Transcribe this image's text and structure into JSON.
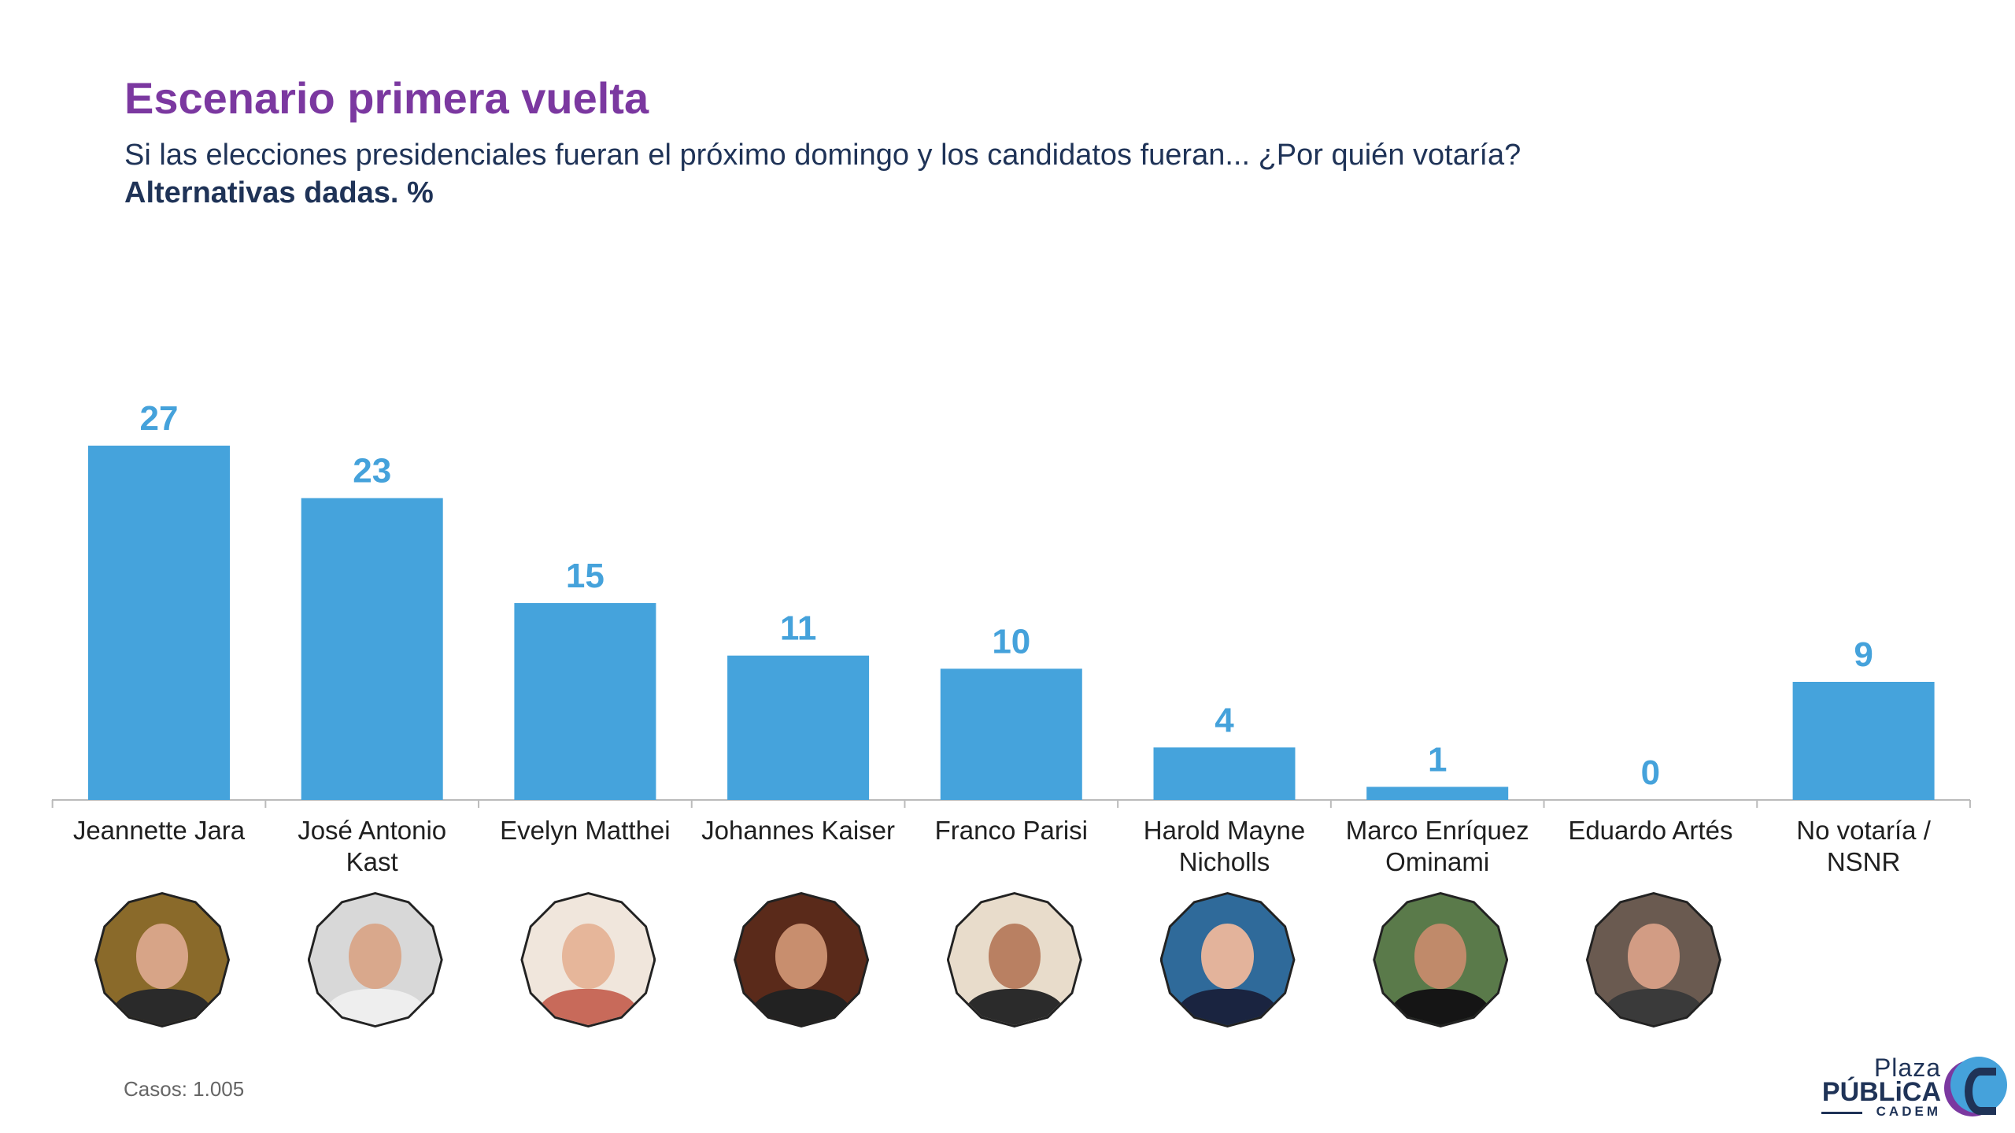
{
  "header": {
    "title": "Escenario primera vuelta",
    "subtitle": "Si las elecciones presidenciales fueran el próximo domingo y los candidatos fueran... ¿Por quién votaría?",
    "note": "Alternativas dadas. %"
  },
  "footer": {
    "cases": "Casos: 1.005",
    "logo": {
      "line1": "Plaza",
      "line2": "PÚBLiCA",
      "line3": "CADEM"
    }
  },
  "colors": {
    "bar": "#45a3dc",
    "label": "#45a2db",
    "title": "#7b38a0",
    "text": "#1f3357"
  },
  "chart_data": {
    "type": "bar",
    "title": "Escenario primera vuelta",
    "xlabel": "",
    "ylabel": "%",
    "ylim": [
      0,
      27
    ],
    "grid": false,
    "categories": [
      "Jeannette Jara",
      "José Antonio Kast",
      "Evelyn Matthei",
      "Johannes Kaiser",
      "Franco Parisi",
      "Harold Mayne Nicholls",
      "Marco Enríquez Ominami",
      "Eduardo Artés",
      "No votaría / NSNR"
    ],
    "values": [
      27,
      23,
      15,
      11,
      10,
      4,
      1,
      0,
      9
    ],
    "value_labels": [
      "27",
      "23",
      "15",
      "11",
      "10",
      "4",
      "1",
      "0",
      "9"
    ]
  },
  "photos": [
    {
      "bg": "#8a6a2a",
      "face": "#d7a487",
      "body": "#2a2a2a"
    },
    {
      "bg": "#d8d8d8",
      "face": "#d9a88c",
      "body": "#eeeeee"
    },
    {
      "bg": "#f0e6dc",
      "face": "#e6b69a",
      "body": "#c86a5a"
    },
    {
      "bg": "#5a2a1a",
      "face": "#c88e6e",
      "body": "#222222"
    },
    {
      "bg": "#e8dccb",
      "face": "#b98062",
      "body": "#2b2b2b"
    },
    {
      "bg": "#2f6a9a",
      "face": "#e3b39b",
      "body": "#1a2440"
    },
    {
      "bg": "#5a7a4a",
      "face": "#c08a6a",
      "body": "#151515"
    },
    {
      "bg": "#6a5a50",
      "face": "#d29c84",
      "body": "#3a3a3a"
    }
  ]
}
